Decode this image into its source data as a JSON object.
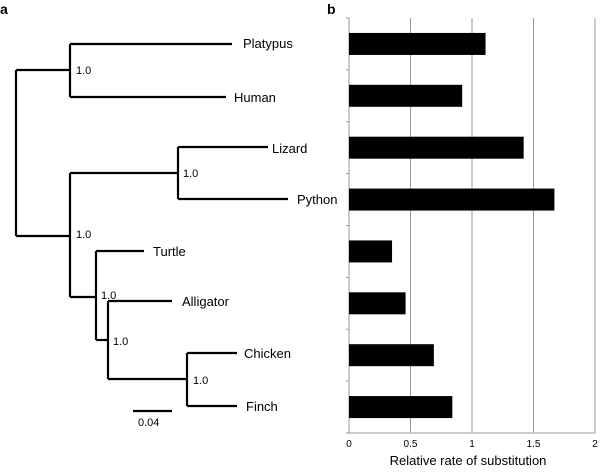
{
  "panels": {
    "a_label": "a",
    "b_label": "b"
  },
  "tree": {
    "taxa": [
      "Platypus",
      "Human",
      "Lizard",
      "Python",
      "Turtle",
      "Alligator",
      "Chicken",
      "Finch"
    ],
    "support_values": [
      "1.0",
      "1.0",
      "1.0",
      "1.0",
      "1.0",
      "1.0"
    ],
    "scale_bar_label": "0.04"
  },
  "chart_data": {
    "type": "bar",
    "orientation": "horizontal",
    "categories": [
      "Platypus",
      "Human",
      "Lizard",
      "Python",
      "Turtle",
      "Alligator",
      "Chicken",
      "Finch"
    ],
    "values": [
      1.11,
      0.92,
      1.42,
      1.67,
      0.35,
      0.46,
      0.69,
      0.84
    ],
    "xlabel": "Relative rate of substitution",
    "ylabel": "",
    "xlim": [
      0,
      2
    ],
    "xticks": [
      "0",
      "0.5",
      "1",
      "1.5",
      "2"
    ],
    "grid": "vertical",
    "bar_color": "#000000"
  }
}
